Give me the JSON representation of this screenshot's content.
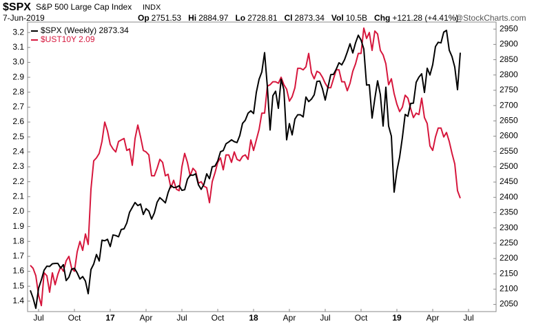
{
  "header": {
    "symbol": "$SPX",
    "name": "S&P 500 Large Cap Index",
    "exchange": "INDX",
    "date": "7-Jun-2019",
    "stats": [
      {
        "label": "Op",
        "value": "2751.53"
      },
      {
        "label": "Hi",
        "value": "2884.97"
      },
      {
        "label": "Lo",
        "value": "2728.81"
      },
      {
        "label": "Cl",
        "value": "2873.34"
      },
      {
        "label": "Vol",
        "value": "10.5B"
      },
      {
        "label": "Chg",
        "value": "+121.28 (+4.41%)"
      }
    ],
    "watermark": "@StockCharts.com"
  },
  "chart_data": {
    "type": "line",
    "xlim": [
      -1,
      169
    ],
    "xticks": [
      {
        "value": 3,
        "label": "Jul"
      },
      {
        "value": 16,
        "label": "Oct"
      },
      {
        "value": 29,
        "label": "17"
      },
      {
        "value": 42,
        "label": "Apr"
      },
      {
        "value": 55,
        "label": "Jul"
      },
      {
        "value": 68,
        "label": "Oct"
      },
      {
        "value": 81,
        "label": "18"
      },
      {
        "value": 94,
        "label": "Apr"
      },
      {
        "value": 107,
        "label": "Jul"
      },
      {
        "value": 120,
        "label": "Oct"
      },
      {
        "value": 133,
        "label": "19"
      },
      {
        "value": 146,
        "label": "Apr"
      },
      {
        "value": 159,
        "label": "Jul"
      }
    ],
    "ylim": [
      1.33,
      3.27
    ],
    "yticks": [
      1.4,
      1.5,
      1.6,
      1.7,
      1.8,
      1.9,
      {
        "value": 2,
        "label": "2.0"
      },
      2.1,
      2.2,
      2.3,
      2.4,
      2.5,
      2.6,
      2.7,
      2.8,
      2.9,
      {
        "value": 3,
        "label": "3.0"
      },
      3.1,
      3.2
    ],
    "y2lim": [
      2026.5,
      2973
    ],
    "y2ticks": [
      2050,
      2100,
      2150,
      2200,
      2250,
      2300,
      2350,
      2400,
      2450,
      2500,
      2550,
      2600,
      2650,
      2700,
      2750,
      2800,
      2850,
      2900,
      2950
    ],
    "legend": "top-left",
    "series": [
      {
        "name": "$SPX (Weekly) 2873.34",
        "color": "#000000",
        "axis": "y2",
        "values": [
          2096,
          2071,
          2037,
          2103,
          2130,
          2162,
          2175,
          2174,
          2183,
          2184,
          2184,
          2169,
          2180,
          2128,
          2139,
          2165,
          2168,
          2153,
          2133,
          2141,
          2126,
          2085,
          2164,
          2182,
          2213,
          2192,
          2260,
          2258,
          2263,
          2239,
          2277,
          2275,
          2271,
          2295,
          2297,
          2316,
          2351,
          2367,
          2383,
          2373,
          2378,
          2344,
          2363,
          2355,
          2329,
          2349,
          2384,
          2399,
          2391,
          2382,
          2416,
          2439,
          2432,
          2433,
          2438,
          2423,
          2425,
          2459,
          2473,
          2472,
          2477,
          2441,
          2426,
          2443,
          2477,
          2461,
          2500,
          2502,
          2519,
          2549,
          2553,
          2575,
          2581,
          2588,
          2582,
          2579,
          2602,
          2642,
          2652,
          2675,
          2683,
          2674,
          2743,
          2786,
          2810,
          2873,
          2762,
          2620,
          2732,
          2747,
          2691,
          2786,
          2752,
          2588,
          2641,
          2604,
          2656,
          2670,
          2670,
          2663,
          2728,
          2713,
          2721,
          2735,
          2779,
          2780,
          2755,
          2718,
          2760,
          2801,
          2802,
          2819,
          2840,
          2833,
          2850,
          2875,
          2902,
          2872,
          2905,
          2930,
          2914,
          2885,
          2767,
          2768,
          2659,
          2723,
          2781,
          2736,
          2633,
          2760,
          2633,
          2600,
          2417,
          2486,
          2532,
          2596,
          2671,
          2665,
          2707,
          2708,
          2776,
          2793,
          2804,
          2743,
          2822,
          2800,
          2834,
          2893,
          2907,
          2905,
          2940,
          2946,
          2881,
          2860,
          2826,
          2752,
          2873
        ]
      },
      {
        "name": "$UST10Y 2.09",
        "color": "#d6163c",
        "axis": "y",
        "values": [
          1.64,
          1.62,
          1.57,
          1.44,
          1.37,
          1.59,
          1.57,
          1.46,
          1.59,
          1.51,
          1.58,
          1.63,
          1.6,
          1.67,
          1.7,
          1.62,
          1.6,
          1.73,
          1.8,
          1.74,
          1.85,
          1.78,
          2.15,
          2.34,
          2.36,
          2.39,
          2.47,
          2.6,
          2.54,
          2.45,
          2.42,
          2.4,
          2.47,
          2.48,
          2.49,
          2.41,
          2.42,
          2.31,
          2.49,
          2.58,
          2.5,
          2.41,
          2.4,
          2.38,
          2.24,
          2.24,
          2.29,
          2.35,
          2.33,
          2.24,
          2.25,
          2.16,
          2.21,
          2.15,
          2.14,
          2.3,
          2.39,
          2.33,
          2.24,
          2.29,
          2.27,
          2.19,
          2.2,
          2.17,
          2.16,
          2.06,
          2.2,
          2.26,
          2.33,
          2.36,
          2.28,
          2.38,
          2.38,
          2.33,
          2.4,
          2.35,
          2.34,
          2.37,
          2.38,
          2.35,
          2.48,
          2.41,
          2.48,
          2.55,
          2.66,
          2.66,
          2.84,
          2.85,
          2.87,
          2.87,
          2.86,
          2.9,
          2.85,
          2.82,
          2.74,
          2.77,
          2.83,
          2.96,
          2.96,
          2.95,
          2.97,
          3.06,
          2.93,
          2.89,
          2.94,
          2.93,
          2.9,
          2.86,
          2.83,
          2.83,
          2.89,
          2.95,
          2.95,
          2.87,
          2.87,
          2.81,
          2.86,
          2.94,
          2.99,
          3.06,
          3.06,
          3.23,
          3.16,
          3.2,
          3.08,
          3.21,
          3.19,
          3.08,
          3.05,
          2.99,
          2.85,
          2.89,
          2.79,
          2.72,
          2.67,
          2.7,
          2.78,
          2.76,
          2.69,
          2.63,
          2.66,
          2.65,
          2.76,
          2.63,
          2.59,
          2.44,
          2.41,
          2.5,
          2.56,
          2.56,
          2.5,
          2.53,
          2.47,
          2.39,
          2.32,
          2.14,
          2.09
        ]
      }
    ]
  }
}
